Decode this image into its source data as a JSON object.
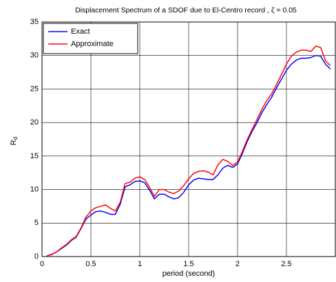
{
  "chart_data": {
    "type": "line",
    "title": "Displacement Spectrum of a SDOF due to El-Centro record , ζ = 0.05",
    "xlabel": "period (second)",
    "ylabel": {
      "main": "R",
      "subscript": "d"
    },
    "x": [
      0.05,
      0.1,
      0.15,
      0.2,
      0.25,
      0.3,
      0.35,
      0.4,
      0.45,
      0.5,
      0.55,
      0.6,
      0.65,
      0.7,
      0.75,
      0.8,
      0.85,
      0.9,
      0.95,
      1.0,
      1.05,
      1.1,
      1.15,
      1.2,
      1.25,
      1.3,
      1.35,
      1.4,
      1.45,
      1.5,
      1.55,
      1.6,
      1.65,
      1.7,
      1.75,
      1.8,
      1.85,
      1.9,
      1.95,
      2.0,
      2.05,
      2.1,
      2.15,
      2.2,
      2.25,
      2.3,
      2.35,
      2.4,
      2.45,
      2.5,
      2.55,
      2.6,
      2.65,
      2.7,
      2.75,
      2.8,
      2.85,
      2.9,
      2.95
    ],
    "series": [
      {
        "name": "Exact",
        "color": "#0000ff",
        "values": [
          0.1,
          0.3,
          0.7,
          1.2,
          1.7,
          2.4,
          2.9,
          4.2,
          5.6,
          6.2,
          6.7,
          6.8,
          6.6,
          6.3,
          6.3,
          7.8,
          10.4,
          10.7,
          11.2,
          11.3,
          11.0,
          9.9,
          8.6,
          9.3,
          9.3,
          8.9,
          8.6,
          8.8,
          9.6,
          10.7,
          11.4,
          11.7,
          11.6,
          11.5,
          11.5,
          12.2,
          13.2,
          13.6,
          13.3,
          13.8,
          15.4,
          17.2,
          18.7,
          20.0,
          21.5,
          22.7,
          23.8,
          25.2,
          26.5,
          27.8,
          28.7,
          29.3,
          29.6,
          29.6,
          29.7,
          30.0,
          29.9,
          28.7,
          28.0
        ]
      },
      {
        "name": "Approximate",
        "color": "#ff0000",
        "values": [
          0.1,
          0.35,
          0.7,
          1.3,
          1.8,
          2.5,
          3.0,
          4.3,
          5.9,
          6.8,
          7.3,
          7.5,
          7.7,
          7.2,
          6.8,
          8.1,
          10.9,
          11.1,
          11.7,
          11.9,
          11.5,
          10.3,
          9.0,
          10.0,
          10.0,
          9.6,
          9.4,
          9.8,
          10.6,
          11.6,
          12.4,
          12.7,
          12.8,
          12.6,
          12.2,
          13.7,
          14.5,
          14.2,
          13.6,
          14.1,
          15.7,
          17.5,
          19.0,
          20.5,
          22.0,
          23.3,
          24.3,
          25.7,
          27.2,
          28.7,
          29.9,
          30.5,
          30.8,
          30.8,
          30.6,
          31.4,
          31.2,
          29.2,
          28.5
        ]
      }
    ],
    "xlim": [
      0,
      3
    ],
    "ylim": [
      0,
      35
    ],
    "xticks": [
      0,
      0.5,
      1,
      1.5,
      2,
      2.5
    ],
    "yticks": [
      0,
      5,
      10,
      15,
      20,
      25,
      30,
      35
    ],
    "grid": true,
    "legend": "upper-left"
  }
}
